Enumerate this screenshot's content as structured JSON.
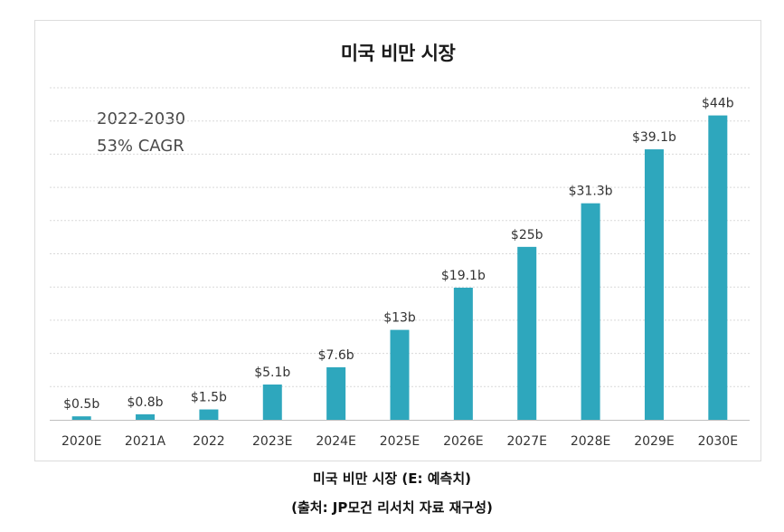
{
  "chart_data": {
    "type": "bar",
    "title": "미국 비만 시장",
    "annotation": [
      "2022-2030",
      "53% CAGR"
    ],
    "categories": [
      "2020E",
      "2021A",
      "2022",
      "2023E",
      "2024E",
      "2025E",
      "2026E",
      "2027E",
      "2028E",
      "2029E",
      "2030E"
    ],
    "values": [
      0.5,
      0.8,
      1.5,
      5.1,
      7.6,
      13,
      19.1,
      25,
      31.3,
      39.1,
      44
    ],
    "data_labels": [
      "$0.5b",
      "$0.8b",
      "$1.5b",
      "$5.1b",
      "$7.6b",
      "$13b",
      "$19.1b",
      "$25b",
      "$31.3b",
      "$39.1b",
      "$44b"
    ],
    "xlabel": "",
    "ylabel": "",
    "ylim": [
      0,
      48
    ],
    "grid": true,
    "bar_color": "#2ea7bd"
  },
  "captions": {
    "line1": "미국 비만 시장 (E: 예측치)",
    "line2": "(출처: JP모건 리서치 자료 재구성)"
  }
}
